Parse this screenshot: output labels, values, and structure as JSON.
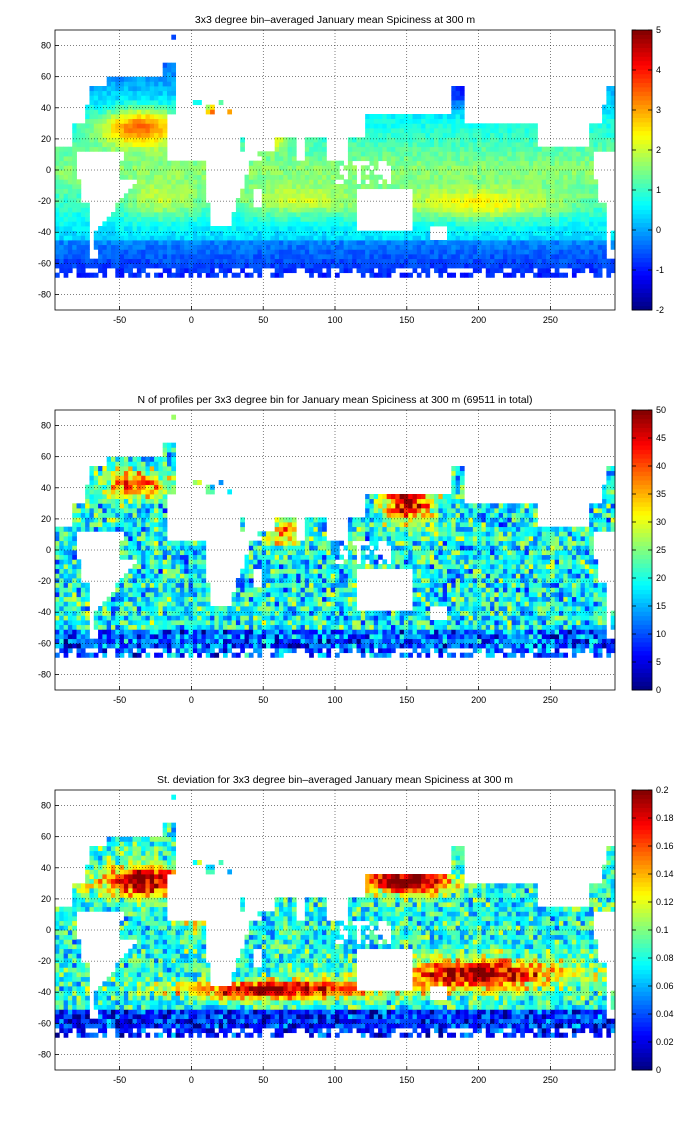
{
  "panels": [
    {
      "id": "mean",
      "title": "3x3 degree bin–averaged January mean Spiciness at 300 m",
      "colorbar": {
        "min": -2,
        "max": 5,
        "ticks": [
          "-2",
          "-1",
          "0",
          "1",
          "2",
          "3",
          "4",
          "5"
        ]
      },
      "field_style": "mean"
    },
    {
      "id": "count",
      "title": "N of profiles per 3x3 degree bin for January mean Spiciness at 300 m (69511 in total)",
      "colorbar": {
        "min": 0,
        "max": 50,
        "ticks": [
          "0",
          "5",
          "10",
          "15",
          "20",
          "25",
          "30",
          "35",
          "40",
          "45",
          "50"
        ]
      },
      "field_style": "count"
    },
    {
      "id": "std",
      "title": "St. deviation for 3x3 degree bin–averaged January mean Spiciness at 300 m",
      "colorbar": {
        "min": 0,
        "max": 0.2,
        "ticks": [
          "0",
          "0.02",
          "0.04",
          "0.06",
          "0.08",
          "0.1",
          "0.12",
          "0.14",
          "0.16",
          "0.18",
          "0.2"
        ]
      },
      "field_style": "std"
    }
  ],
  "axes": {
    "x_range": [
      -95,
      295
    ],
    "y_range": [
      -90,
      90
    ],
    "x_ticks": [
      "-50",
      "0",
      "50",
      "100",
      "150",
      "200",
      "250"
    ],
    "y_ticks": [
      "-80",
      "-60",
      "-40",
      "-20",
      "0",
      "20",
      "40",
      "60",
      "80"
    ],
    "grid": true,
    "colormap": "jet"
  }
}
